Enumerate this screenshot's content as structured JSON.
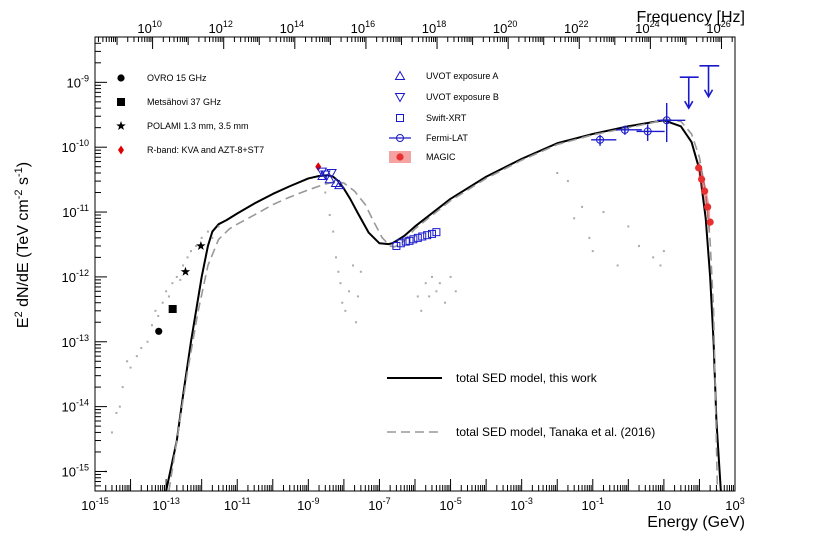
{
  "chart_data": {
    "type": "scatter",
    "title": "",
    "xlabel": "Energy (GeV)",
    "ylabel": "E² dN/dE (TeV cm⁻² s⁻¹)",
    "ylabel_parts": {
      "base": "E",
      "sup1": "2",
      "mid": " dN/dE (TeV cm",
      "sup2": "-2",
      "mid2": " s",
      "sup3": "-1",
      "end": ")"
    },
    "top_xlabel": "Frequency [Hz]",
    "xscale": "log",
    "yscale": "log",
    "xlim": [
      1e-15,
      1000
    ],
    "ylim": [
      5e-16,
      5e-09
    ],
    "top_xlim": [
      240000000.0,
      2.4e+26
    ],
    "x_tick_exponents": [
      -15,
      -13,
      -11,
      -9,
      -7,
      -5,
      -3,
      -1,
      1,
      3
    ],
    "x_tick_labels": [
      "10",
      "10",
      "10",
      "10",
      "10",
      "10",
      "10",
      "10",
      "10",
      "10"
    ],
    "x_tick_exp_labels": [
      "-15",
      "-13",
      "-11",
      "-9",
      "-7",
      "-5",
      "-3",
      "-1",
      "",
      "3"
    ],
    "x_tick_plain_labels": [
      "",
      "",
      "",
      "",
      "",
      "",
      "",
      "",
      "10",
      ""
    ],
    "y_tick_exponents": [
      -15,
      -14,
      -13,
      -12,
      -11,
      -10,
      -9
    ],
    "y_tick_labels": [
      "10",
      "10",
      "10",
      "10",
      "10",
      "10",
      "10"
    ],
    "y_tick_exp_labels": [
      "-15",
      "-14",
      "-13",
      "-12",
      "-11",
      "-10",
      "-9"
    ],
    "top_tick_exponents": [
      10,
      12,
      14,
      16,
      18,
      20,
      22,
      24,
      26
    ],
    "top_tick_labels": [
      "10",
      "10",
      "10",
      "10",
      "10",
      "10",
      "10",
      "10",
      "10"
    ],
    "top_tick_exp_labels": [
      "10",
      "12",
      "14",
      "16",
      "18",
      "20",
      "22",
      "24",
      "26"
    ],
    "legend": {
      "placement": "top-left",
      "instrument_entries": [
        {
          "label": "OVRO 15 GHz",
          "marker": "circle",
          "color": "#000000"
        },
        {
          "label": "Metsähovi 37 GHz",
          "marker": "square",
          "color": "#000000"
        },
        {
          "label": "POLAMI 1.3 mm, 3.5 mm",
          "marker": "star",
          "color": "#000000"
        },
        {
          "label": "R-band: KVA and AZT-8+ST7",
          "marker": "diamond",
          "color": "#e00000"
        },
        {
          "label": "UVOT exposure A",
          "marker": "triangle-up-open",
          "color": "#1a1acc"
        },
        {
          "label": "UVOT exposure B",
          "marker": "triangle-down-open",
          "color": "#1a1acc"
        },
        {
          "label": "Swift-XRT",
          "marker": "square-open",
          "color": "#1a1acc"
        },
        {
          "label": "Fermi-LAT",
          "marker": "circle-open-line",
          "color": "#1a1acc"
        },
        {
          "label": "MAGIC",
          "marker": "circle-band",
          "color": "#e83030"
        }
      ],
      "model_entries": [
        {
          "label": "total SED model, this work",
          "style": "solid",
          "color": "#000000"
        },
        {
          "label": "total SED model, Tanaka et al. (2016)",
          "style": "dashed",
          "color": "#999999"
        }
      ]
    },
    "series": [
      {
        "name": "total SED model, this work",
        "kind": "line",
        "color": "#000000",
        "x": [
          1e-13,
          2e-13,
          3e-13,
          5e-13,
          1e-12,
          1.5e-12,
          2e-12,
          3e-12,
          5e-12,
          1e-11,
          3e-11,
          1e-10,
          3e-10,
          1e-09,
          2e-09,
          3.5e-09,
          5e-09,
          7e-09,
          1e-08,
          1.5e-08,
          2.5e-08,
          5e-08,
          1e-07,
          1.8e-07,
          2.3e-07,
          3e-07,
          5e-07,
          1e-06,
          1e-05,
          0.0001,
          0.001,
          0.01,
          0.1,
          1,
          10,
          30,
          60,
          100,
          150,
          200,
          250,
          300,
          400
        ],
        "y": [
          5e-16,
          3e-15,
          1.5e-14,
          1e-13,
          1e-12,
          3e-12,
          5e-12,
          6.5e-12,
          7.5e-12,
          9.5e-12,
          1.35e-11,
          1.9e-11,
          2.5e-11,
          3.3e-11,
          3.6e-11,
          3.7e-11,
          3.5e-11,
          3e-11,
          2.3e-11,
          1.6e-11,
          9.5e-12,
          4.8e-12,
          3.3e-12,
          3.2e-12,
          3.3e-12,
          3.6e-12,
          4.3e-12,
          6e-12,
          1.6e-11,
          3.5e-11,
          6.6e-11,
          1.15e-10,
          1.6e-10,
          2.1e-10,
          2.6e-10,
          2.1e-10,
          1.2e-10,
          4.5e-11,
          8e-12,
          1e-12,
          1e-13,
          6e-15,
          5e-16
        ]
      },
      {
        "name": "total SED model, Tanaka et al. (2016)",
        "kind": "dashed-line",
        "color": "#999999",
        "x": [
          1.2e-13,
          2e-13,
          4e-13,
          8e-13,
          1.5e-12,
          3e-12,
          6e-12,
          1e-11,
          3e-11,
          1e-10,
          3e-10,
          1e-09,
          3e-09,
          6e-09,
          1e-08,
          2e-08,
          4e-08,
          7e-08,
          1.2e-07,
          2e-07,
          2.6e-07,
          4e-07,
          1e-06,
          1e-05,
          0.0001,
          0.001,
          0.01,
          0.1,
          1,
          5,
          10,
          30,
          60,
          100,
          150,
          200,
          250,
          320
        ],
        "y": [
          5e-16,
          3e-15,
          3.5e-14,
          3e-13,
          1.5e-12,
          3.8e-12,
          5.5e-12,
          6.5e-12,
          9e-12,
          1.3e-11,
          1.7e-11,
          2.2e-11,
          2.7e-11,
          2.95e-11,
          2.8e-11,
          2.1e-11,
          1.3e-11,
          7e-12,
          4e-12,
          3e-12,
          2.9e-12,
          3.2e-12,
          5.5e-12,
          1.5e-11,
          3.3e-11,
          6.3e-11,
          1.1e-10,
          1.55e-10,
          2e-10,
          2.4e-10,
          2.7e-10,
          2.5e-10,
          1.6e-10,
          7e-11,
          2e-11,
          3.5e-12,
          3e-13,
          5e-16
        ]
      },
      {
        "name": "OVRO 15 GHz",
        "kind": "points",
        "marker": "circle",
        "color": "#000000",
        "x": [
          6.2e-14
        ],
        "y": [
          1.45e-13
        ]
      },
      {
        "name": "Metsähovi 37 GHz",
        "kind": "points",
        "marker": "square",
        "color": "#000000",
        "x": [
          1.53e-13
        ],
        "y": [
          3.2e-13
        ]
      },
      {
        "name": "POLAMI 1.3 mm, 3.5 mm",
        "kind": "points",
        "marker": "star",
        "color": "#000000",
        "x": [
          3.5e-13,
          9.5e-13
        ],
        "y": [
          1.2e-12,
          3e-12
        ]
      },
      {
        "name": "R-band: KVA and AZT-8+ST7",
        "kind": "points",
        "marker": "diamond",
        "color": "#e00000",
        "x": [
          1.9e-09
        ],
        "y": [
          5e-11
        ]
      },
      {
        "name": "UVOT exposure A",
        "kind": "points",
        "marker": "triangle-up-open",
        "color": "#1a1acc",
        "x": [
          2.5e-09,
          4e-09,
          6e-09,
          7.5e-09
        ],
        "y": [
          3.6e-11,
          3.2e-11,
          2.8e-11,
          2.6e-11
        ]
      },
      {
        "name": "UVOT exposure B",
        "kind": "points",
        "marker": "triangle-down-open",
        "color": "#1a1acc",
        "x": [
          2.4e-09,
          3e-09,
          4.5e-09
        ],
        "y": [
          4.2e-11,
          3.8e-11,
          4e-11
        ]
      },
      {
        "name": "Swift-XRT",
        "kind": "points",
        "marker": "square-open",
        "color": "#1a1acc",
        "x": [
          3e-07,
          4e-07,
          5.5e-07,
          7e-07,
          9e-07,
          1.2e-06,
          1.6e-06,
          2.2e-06,
          3e-06,
          4e-06
        ],
        "y": [
          3e-12,
          3.3e-12,
          3.5e-12,
          3.6e-12,
          3.8e-12,
          4e-12,
          4.2e-12,
          4.4e-12,
          4.6e-12,
          4.9e-12
        ]
      },
      {
        "name": "Fermi-LAT",
        "kind": "points",
        "marker": "circle-open-line",
        "color": "#1a1acc",
        "x": [
          0.16,
          0.8,
          3.5,
          12
        ],
        "y": [
          1.3e-10,
          1.85e-10,
          1.75e-10,
          2.6e-10
        ],
        "xerr_low": [
          0.07,
          0.35,
          1.8,
          5.5
        ],
        "xerr_high": [
          0.3,
          1.6,
          7,
          28
        ],
        "yerr_low": [
          2.5e-11,
          3e-11,
          5e-11,
          1.4e-10
        ],
        "yerr_high": [
          2.5e-11,
          3e-11,
          5e-11,
          2.2e-10
        ]
      },
      {
        "name": "Fermi-LAT upper limits",
        "kind": "upper-limits",
        "color": "#1a1acc",
        "x": [
          50,
          180
        ],
        "y": [
          1.2e-09,
          1.8e-09
        ],
        "xerr_low": [
          22,
          80
        ],
        "xerr_high": [
          45,
          180
        ]
      },
      {
        "name": "MAGIC",
        "kind": "points-band",
        "marker": "circle",
        "color": "#e83030",
        "x": [
          95,
          115,
          140,
          170,
          200
        ],
        "y": [
          4.8e-11,
          3.2e-11,
          2.1e-11,
          1.2e-11,
          7e-12
        ],
        "band_low": [
          3.5e-11,
          2.3e-11,
          1.5e-11,
          8e-12,
          4.5e-12
        ],
        "band_high": [
          6.5e-11,
          4.5e-11,
          3e-11,
          1.8e-11,
          1.1e-11
        ]
      },
      {
        "name": "archival data",
        "kind": "points",
        "marker": "dot",
        "color": "#aaaaaa",
        "x": [
          2e-15,
          3e-15,
          4e-15,
          5e-15,
          6e-15,
          8e-15,
          1e-14,
          1.5e-14,
          2e-14,
          3e-14,
          4e-14,
          5e-14,
          6e-14,
          8e-14,
          1e-13,
          1.2e-13,
          1.5e-13,
          2e-13,
          2.5e-13,
          3e-13,
          4e-13,
          5e-13,
          7e-13,
          1e-12,
          1.5e-12,
          2e-12,
          3e-12,
          3e-09,
          4e-09,
          5e-09,
          6e-09,
          7e-09,
          8e-09,
          9e-09,
          1.1e-08,
          1.4e-08,
          1.8e-08,
          2.2e-08,
          2.5e-08,
          3e-08,
          1.2e-06,
          1.5e-06,
          2e-06,
          2.5e-06,
          3e-06,
          4e-06,
          5e-06,
          7e-06,
          1e-05,
          1.4e-05,
          0.01,
          0.02,
          0.03,
          0.05,
          0.08,
          0.1,
          0.2,
          0.5,
          1,
          2,
          5,
          8,
          10
        ],
        "y": [
          1e-15,
          4e-15,
          8e-15,
          1e-14,
          2e-14,
          5e-14,
          4e-14,
          6e-14,
          8e-14,
          1e-13,
          1.8e-13,
          3e-13,
          2.5e-13,
          4e-13,
          6e-13,
          5e-13,
          8e-13,
          1e-12,
          9e-13,
          1.5e-12,
          2e-12,
          2.5e-12,
          3e-12,
          4e-12,
          5e-12,
          4e-12,
          6e-12,
          2e-11,
          9e-12,
          5e-12,
          2e-12,
          1.2e-12,
          8e-13,
          4e-13,
          3e-13,
          6e-13,
          1.5e-12,
          2e-13,
          5e-13,
          1.2e-12,
          5e-13,
          3e-13,
          8e-13,
          5e-13,
          1e-12,
          6e-13,
          8e-13,
          4e-13,
          1e-12,
          6e-13,
          4e-11,
          3e-11,
          8e-12,
          1.2e-11,
          4e-12,
          2.5e-12,
          1e-11,
          1.5e-12,
          6e-12,
          3e-12,
          2e-12,
          1.5e-12,
          2.5e-12
        ]
      }
    ]
  }
}
